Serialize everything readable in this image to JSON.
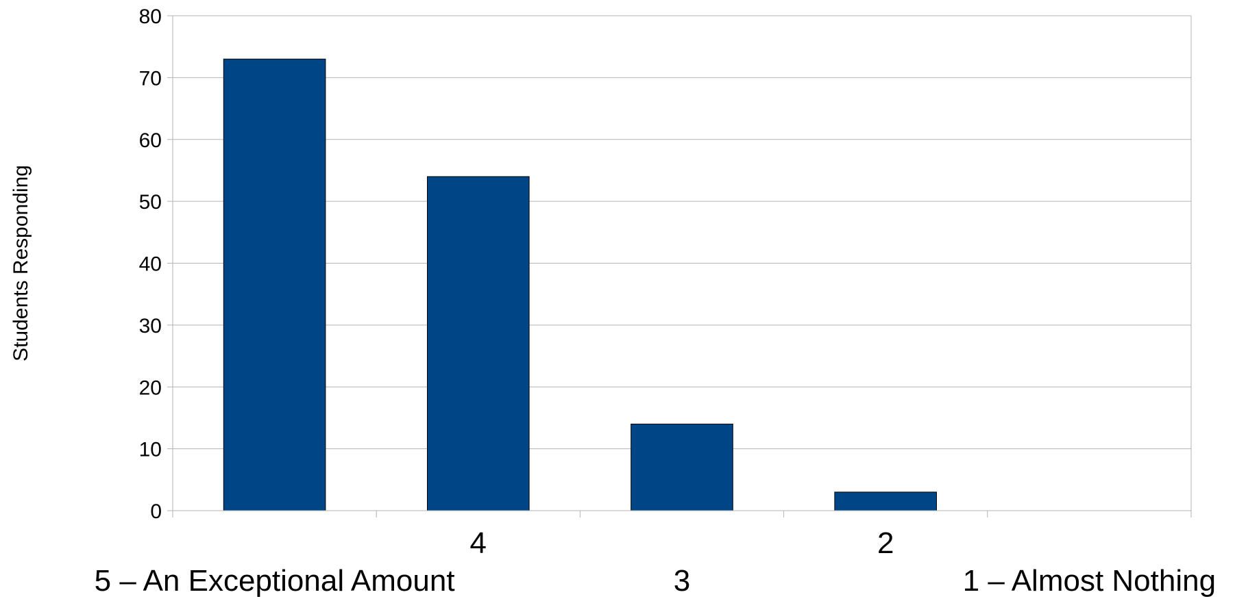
{
  "chart_data": {
    "type": "bar",
    "title": "",
    "xlabel": "",
    "ylabel": "Students Responding",
    "categories": [
      "5 – An Exceptional Amount",
      "4",
      "3",
      "2",
      "1 – Almost Nothing"
    ],
    "values": [
      73,
      54,
      14,
      3,
      0
    ],
    "ylim": [
      0,
      80
    ],
    "yticks": [
      0,
      10,
      20,
      30,
      40,
      50,
      60,
      70,
      80
    ],
    "grid": true,
    "legend": "none",
    "bar_color": "#004586",
    "category_label_rows": [
      "lower",
      "upper",
      "lower",
      "upper",
      "lower"
    ]
  }
}
